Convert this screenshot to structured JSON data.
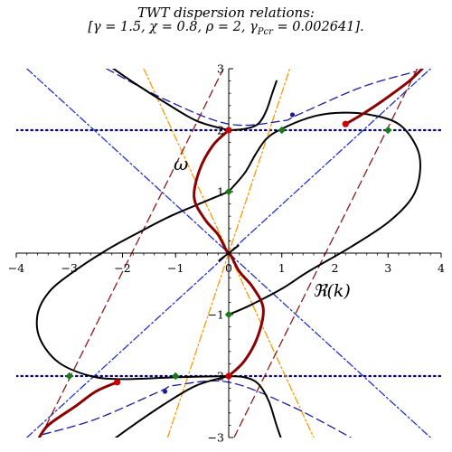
{
  "chart_data": {
    "type": "line",
    "title": "TWT dispersion relations:",
    "subtitle": "[γ = 1.5, χ = 0.8, ρ = 2, γ_Pcr = 0.002641].",
    "subtitle_parts": [
      "[γ = 1.5, χ = 0.8, ρ = 2, γ",
      "Pcr",
      " = 0.002641]."
    ],
    "xlabel": "ℜ(k)",
    "ylabel": "ω",
    "xlim": [
      -4,
      4
    ],
    "ylim": [
      -3,
      3
    ],
    "x_ticks": [
      -4,
      -3,
      -2,
      -1,
      0,
      1,
      2,
      3,
      4
    ],
    "y_ticks": [
      -3,
      -2,
      -1,
      1,
      2,
      3
    ],
    "x_tick_labels": [
      "−4",
      "−3",
      "−2",
      "−1",
      "0",
      "1",
      "2",
      "3",
      "4"
    ],
    "y_tick_labels": [
      "−3",
      "−2",
      "−1",
      "1",
      "2",
      "3"
    ],
    "grid": false,
    "legend": "none",
    "colors": {
      "black_branch": "#000000",
      "red_branch": "#8b0000",
      "red_dot": "#cc0000",
      "green_marker": "#1a7a1a",
      "blue_dash": "#1c1c9c",
      "red_dash": "#8b1a1a",
      "blue_dashdot": "#2233cc",
      "orange_dashdot": "#ff9900",
      "dotted_blue": "#00007f"
    },
    "series": [
      {
        "style": "black",
        "points": [
          [
            -2.25,
            3.05
          ],
          [
            -1.8,
            2.78
          ],
          [
            -1.2,
            2.45
          ],
          [
            -0.6,
            2.15
          ],
          [
            0,
            2.0
          ]
        ]
      },
      {
        "style": "black",
        "points": [
          [
            0,
            2.0
          ],
          [
            0.3,
            2.02
          ],
          [
            0.55,
            2.1
          ],
          [
            0.7,
            2.3
          ],
          [
            0.82,
            2.6
          ],
          [
            0.9,
            2.8
          ]
        ]
      },
      {
        "style": "black",
        "points": [
          [
            0,
            1.0
          ],
          [
            -0.5,
            0.82
          ],
          [
            -1.1,
            0.6
          ],
          [
            -1.6,
            0.38
          ],
          [
            -2.3,
            0.05
          ],
          [
            -3.0,
            -0.35
          ],
          [
            -3.4,
            -0.65
          ],
          [
            -3.6,
            -1.0
          ],
          [
            -3.55,
            -1.4
          ],
          [
            -3.2,
            -1.78
          ],
          [
            -2.6,
            -2.0
          ],
          [
            -2.0,
            -2.05
          ],
          [
            -1.0,
            -2.02
          ],
          [
            0,
            -2.0
          ]
        ]
      },
      {
        "style": "black",
        "points": [
          [
            0,
            1.0
          ],
          [
            0.3,
            1.3
          ],
          [
            0.5,
            1.6
          ],
          [
            0.7,
            1.85
          ],
          [
            0.95,
            2.0
          ],
          [
            1.5,
            2.2
          ],
          [
            2.0,
            2.28
          ],
          [
            2.6,
            2.26
          ],
          [
            3.2,
            2.1
          ],
          [
            3.55,
            1.7
          ],
          [
            3.6,
            1.3
          ],
          [
            3.45,
            0.9
          ],
          [
            3.0,
            0.5
          ],
          [
            2.3,
            0.1
          ],
          [
            1.5,
            -0.3
          ],
          [
            1.0,
            -0.58
          ],
          [
            0.4,
            -0.85
          ],
          [
            0,
            -1.0
          ]
        ]
      },
      {
        "style": "black",
        "points": [
          [
            0,
            -2.0
          ],
          [
            -0.6,
            -2.15
          ],
          [
            -1.2,
            -2.45
          ],
          [
            -1.8,
            -2.8
          ],
          [
            -2.2,
            -3.05
          ]
        ]
      },
      {
        "style": "black",
        "points": [
          [
            0,
            -2.0
          ],
          [
            0.3,
            -2.02
          ],
          [
            0.55,
            -2.12
          ],
          [
            0.75,
            -2.4
          ],
          [
            0.9,
            -2.8
          ],
          [
            1.0,
            -3.05
          ]
        ]
      },
      {
        "style": "black",
        "points": [
          [
            -0.18,
            -0.12
          ],
          [
            0,
            0
          ],
          [
            0.18,
            0.12
          ]
        ]
      },
      {
        "style": "red",
        "points": [
          [
            0,
            2.0
          ],
          [
            -0.3,
            1.75
          ],
          [
            -0.55,
            1.35
          ],
          [
            -0.65,
            0.9
          ],
          [
            -0.45,
            0.55
          ],
          [
            -0.2,
            0.3
          ],
          [
            -0.05,
            0.05
          ],
          [
            0,
            0
          ],
          [
            0.05,
            -0.05
          ],
          [
            0.2,
            -0.3
          ],
          [
            0.45,
            -0.55
          ],
          [
            0.65,
            -0.9
          ],
          [
            0.55,
            -1.35
          ],
          [
            0.3,
            -1.75
          ],
          [
            0,
            -2.0
          ]
        ]
      },
      {
        "style": "red",
        "points": [
          [
            2.2,
            2.1
          ],
          [
            2.5,
            2.25
          ],
          [
            2.9,
            2.48
          ],
          [
            3.4,
            2.8
          ],
          [
            3.7,
            3.05
          ]
        ]
      },
      {
        "style": "red",
        "points": [
          [
            -2.1,
            -2.1
          ],
          [
            -2.5,
            -2.25
          ],
          [
            -2.9,
            -2.5
          ],
          [
            -3.4,
            -2.8
          ],
          [
            -3.6,
            -3.05
          ]
        ]
      },
      {
        "style": "dash-blue",
        "points": [
          [
            -2.3,
            3.0
          ],
          [
            -1.2,
            2.5
          ],
          [
            0,
            2.1
          ],
          [
            1.0,
            2.15
          ],
          [
            1.3,
            2.25
          ],
          [
            2.5,
            2.7
          ],
          [
            3.5,
            2.95
          ]
        ]
      },
      {
        "style": "dash-blue",
        "points": [
          [
            -3.5,
            -2.95
          ],
          [
            -2.5,
            -2.7
          ],
          [
            -1.3,
            -2.25
          ],
          [
            -1.0,
            -2.15
          ],
          [
            0,
            -2.1
          ],
          [
            1.2,
            -2.5
          ],
          [
            2.3,
            -3.0
          ]
        ]
      },
      {
        "style": "dash-red",
        "points": [
          [
            0.1,
            -3.0
          ],
          [
            3.55,
            3.0
          ]
        ]
      },
      {
        "style": "dash-red",
        "points": [
          [
            -3.55,
            -3.0
          ],
          [
            -0.1,
            3.0
          ]
        ]
      },
      {
        "style": "dashdot-blue",
        "points": [
          [
            -3.8,
            3.0
          ],
          [
            3.8,
            -3.0
          ]
        ]
      },
      {
        "style": "dashdot-blue",
        "points": [
          [
            -3.8,
            -3.0
          ],
          [
            3.8,
            3.0
          ]
        ]
      },
      {
        "style": "dashdot-orange",
        "points": [
          [
            -1.6,
            3.0
          ],
          [
            1.6,
            -3.0
          ]
        ]
      },
      {
        "style": "dashdot-orange",
        "points": [
          [
            -1.15,
            -3.0
          ],
          [
            1.15,
            3.0
          ]
        ]
      }
    ],
    "horizontal_lines": [
      2,
      -2
    ],
    "markers": [
      {
        "x": 0,
        "y": 2,
        "color": "red_dot"
      },
      {
        "x": 0,
        "y": -2,
        "color": "red_dot"
      },
      {
        "x": 2.2,
        "y": 2.1,
        "color": "red_dot"
      },
      {
        "x": -2.1,
        "y": -2.1,
        "color": "red_dot"
      },
      {
        "x": 0,
        "y": 1,
        "color": "green_marker"
      },
      {
        "x": 0,
        "y": -1,
        "color": "green_marker"
      },
      {
        "x": 1,
        "y": 2,
        "color": "green_marker"
      },
      {
        "x": 3,
        "y": 2,
        "color": "green_marker"
      },
      {
        "x": -1,
        "y": -2,
        "color": "green_marker"
      },
      {
        "x": -3,
        "y": -2,
        "color": "green_marker"
      },
      {
        "x": 1.2,
        "y": 2.25,
        "color": "blue_dash"
      },
      {
        "x": -1.2,
        "y": -2.25,
        "color": "blue_dash"
      }
    ]
  }
}
